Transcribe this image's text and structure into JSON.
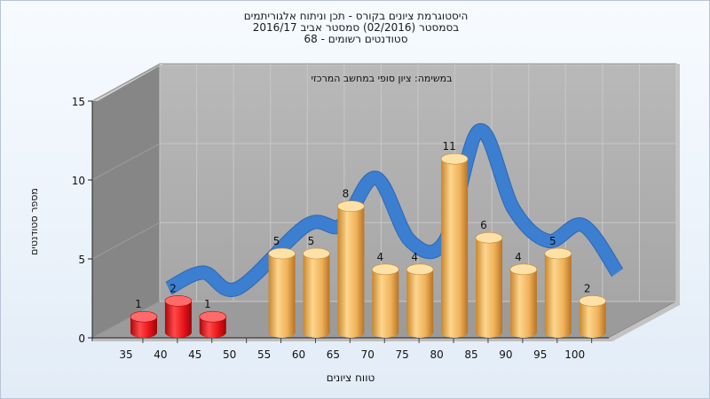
{
  "chart_data": {
    "type": "bar",
    "title_lines": [
      "היסטוגרמת ציונים בקורס - תכן וניתוח אלגוריתמים",
      "בסמסטר  (02/2016)  סמסטר אביב 2016/17",
      "סטודנטים רשומים - 68"
    ],
    "subtitle": "במשימה: ציון סופי במחשב המרכזי",
    "xlabel": "טווח ציונים",
    "ylabel": "מספר סטודנטים",
    "categories": [
      "35",
      "40",
      "45",
      "50",
      "55",
      "60",
      "65",
      "70",
      "75",
      "80",
      "85",
      "90",
      "95",
      "100"
    ],
    "values": [
      1,
      2,
      1,
      0,
      5,
      5,
      8,
      4,
      4,
      11,
      6,
      4,
      5,
      2
    ],
    "ylim": [
      0,
      15
    ],
    "yticks": [
      "0",
      "5",
      "10",
      "15"
    ],
    "fail_threshold": 55,
    "colors": {
      "fail_bar": "#e8141a",
      "pass_bar": "#f2b75a",
      "curve": "#3c7fd0",
      "wall": "#aeaeae",
      "side_wall": "#858585",
      "floor": "#9a9a9a"
    },
    "grid": true
  }
}
